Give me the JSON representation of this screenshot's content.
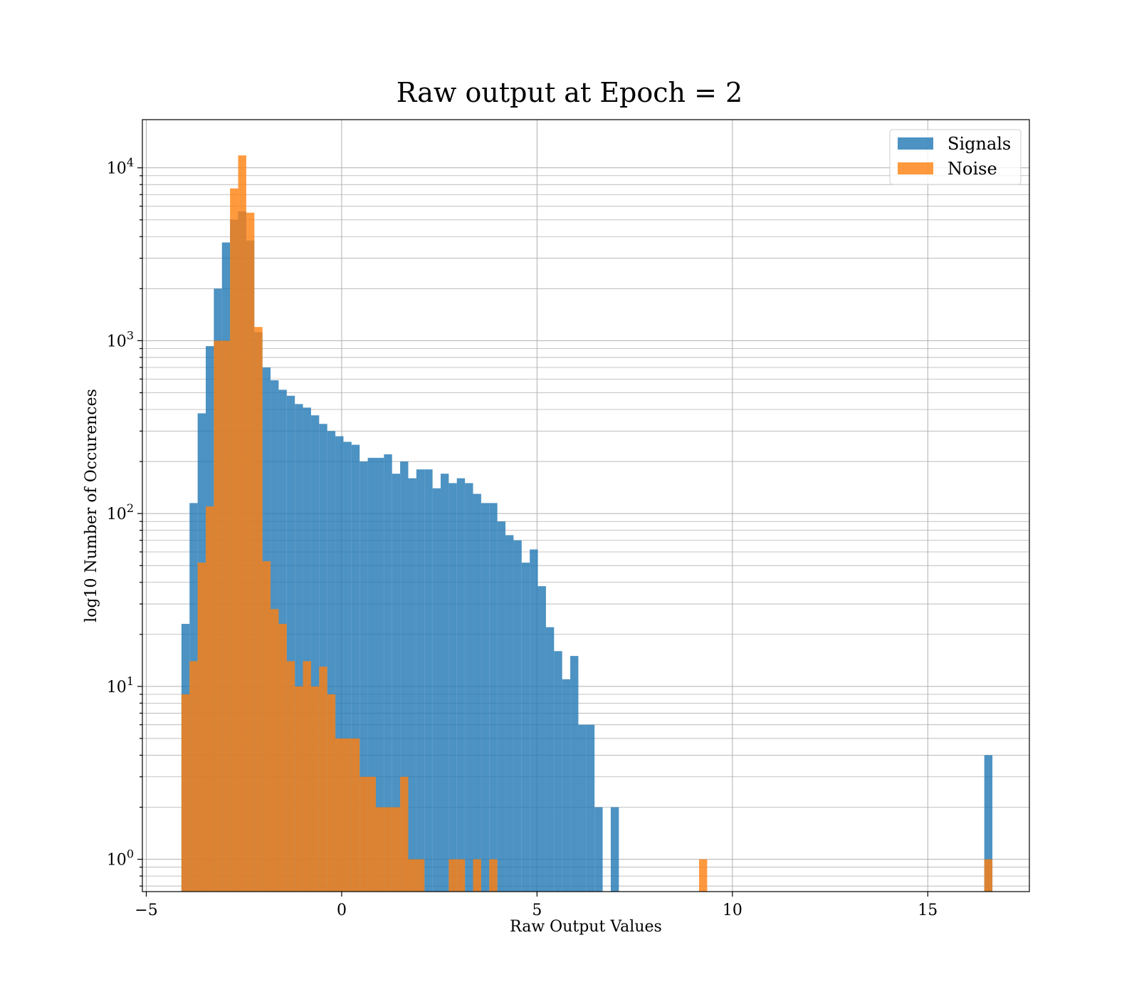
{
  "chart_data": {
    "type": "bar",
    "title": "Raw output at Epoch = 2",
    "xlabel": "Raw Output Values",
    "ylabel": "log10 Number of Occurences",
    "xlim": [
      -5.1,
      17.6
    ],
    "ylim": [
      0.65,
      19000
    ],
    "yscale": "log",
    "grid": true,
    "legend_position": "top-right",
    "x_ticks": [
      -5,
      0,
      5,
      10,
      15
    ],
    "x_tick_labels": [
      "−5",
      "0",
      "5",
      "10",
      "15"
    ],
    "y_ticks": [
      1,
      10,
      100,
      1000,
      10000
    ],
    "y_tick_labels": [
      {
        "base": "10",
        "exp": "0"
      },
      {
        "base": "10",
        "exp": "1"
      },
      {
        "base": "10",
        "exp": "2"
      },
      {
        "base": "10",
        "exp": "3"
      },
      {
        "base": "10",
        "exp": "4"
      }
    ],
    "bin_start": -4.1,
    "bin_width": 0.2073,
    "series": [
      {
        "name": "Signals",
        "color": "#1f77b4",
        "opacity": 0.8,
        "counts": [
          23,
          115,
          380,
          930,
          2000,
          3700,
          5000,
          5600,
          3800,
          1120,
          700,
          590,
          520,
          480,
          430,
          410,
          370,
          330,
          300,
          280,
          260,
          250,
          200,
          210,
          210,
          220,
          170,
          200,
          160,
          180,
          180,
          140,
          170,
          150,
          160,
          150,
          130,
          115,
          115,
          90,
          75,
          70,
          52,
          62,
          38,
          22,
          16,
          11,
          15,
          6,
          6,
          2,
          0,
          2
        ]
      },
      {
        "name": "Noise",
        "color": "#ff7f0e",
        "opacity": 0.8,
        "counts": [
          9,
          14,
          52,
          110,
          1000,
          1000,
          7600,
          11800,
          5500,
          1200,
          53,
          28,
          23,
          14,
          10,
          14,
          10,
          13,
          9,
          5,
          5,
          5,
          3,
          3,
          2,
          2,
          2,
          3,
          1,
          1,
          0,
          0,
          0,
          1,
          1,
          0,
          1,
          0,
          1,
          0
        ],
        "extra_bins": [
          {
            "x": 9.25,
            "count": 1
          },
          {
            "x": 16.55,
            "count": 1
          }
        ]
      }
    ],
    "signal_extra_bins": [
      {
        "x": 16.55,
        "count": 4
      }
    ]
  }
}
